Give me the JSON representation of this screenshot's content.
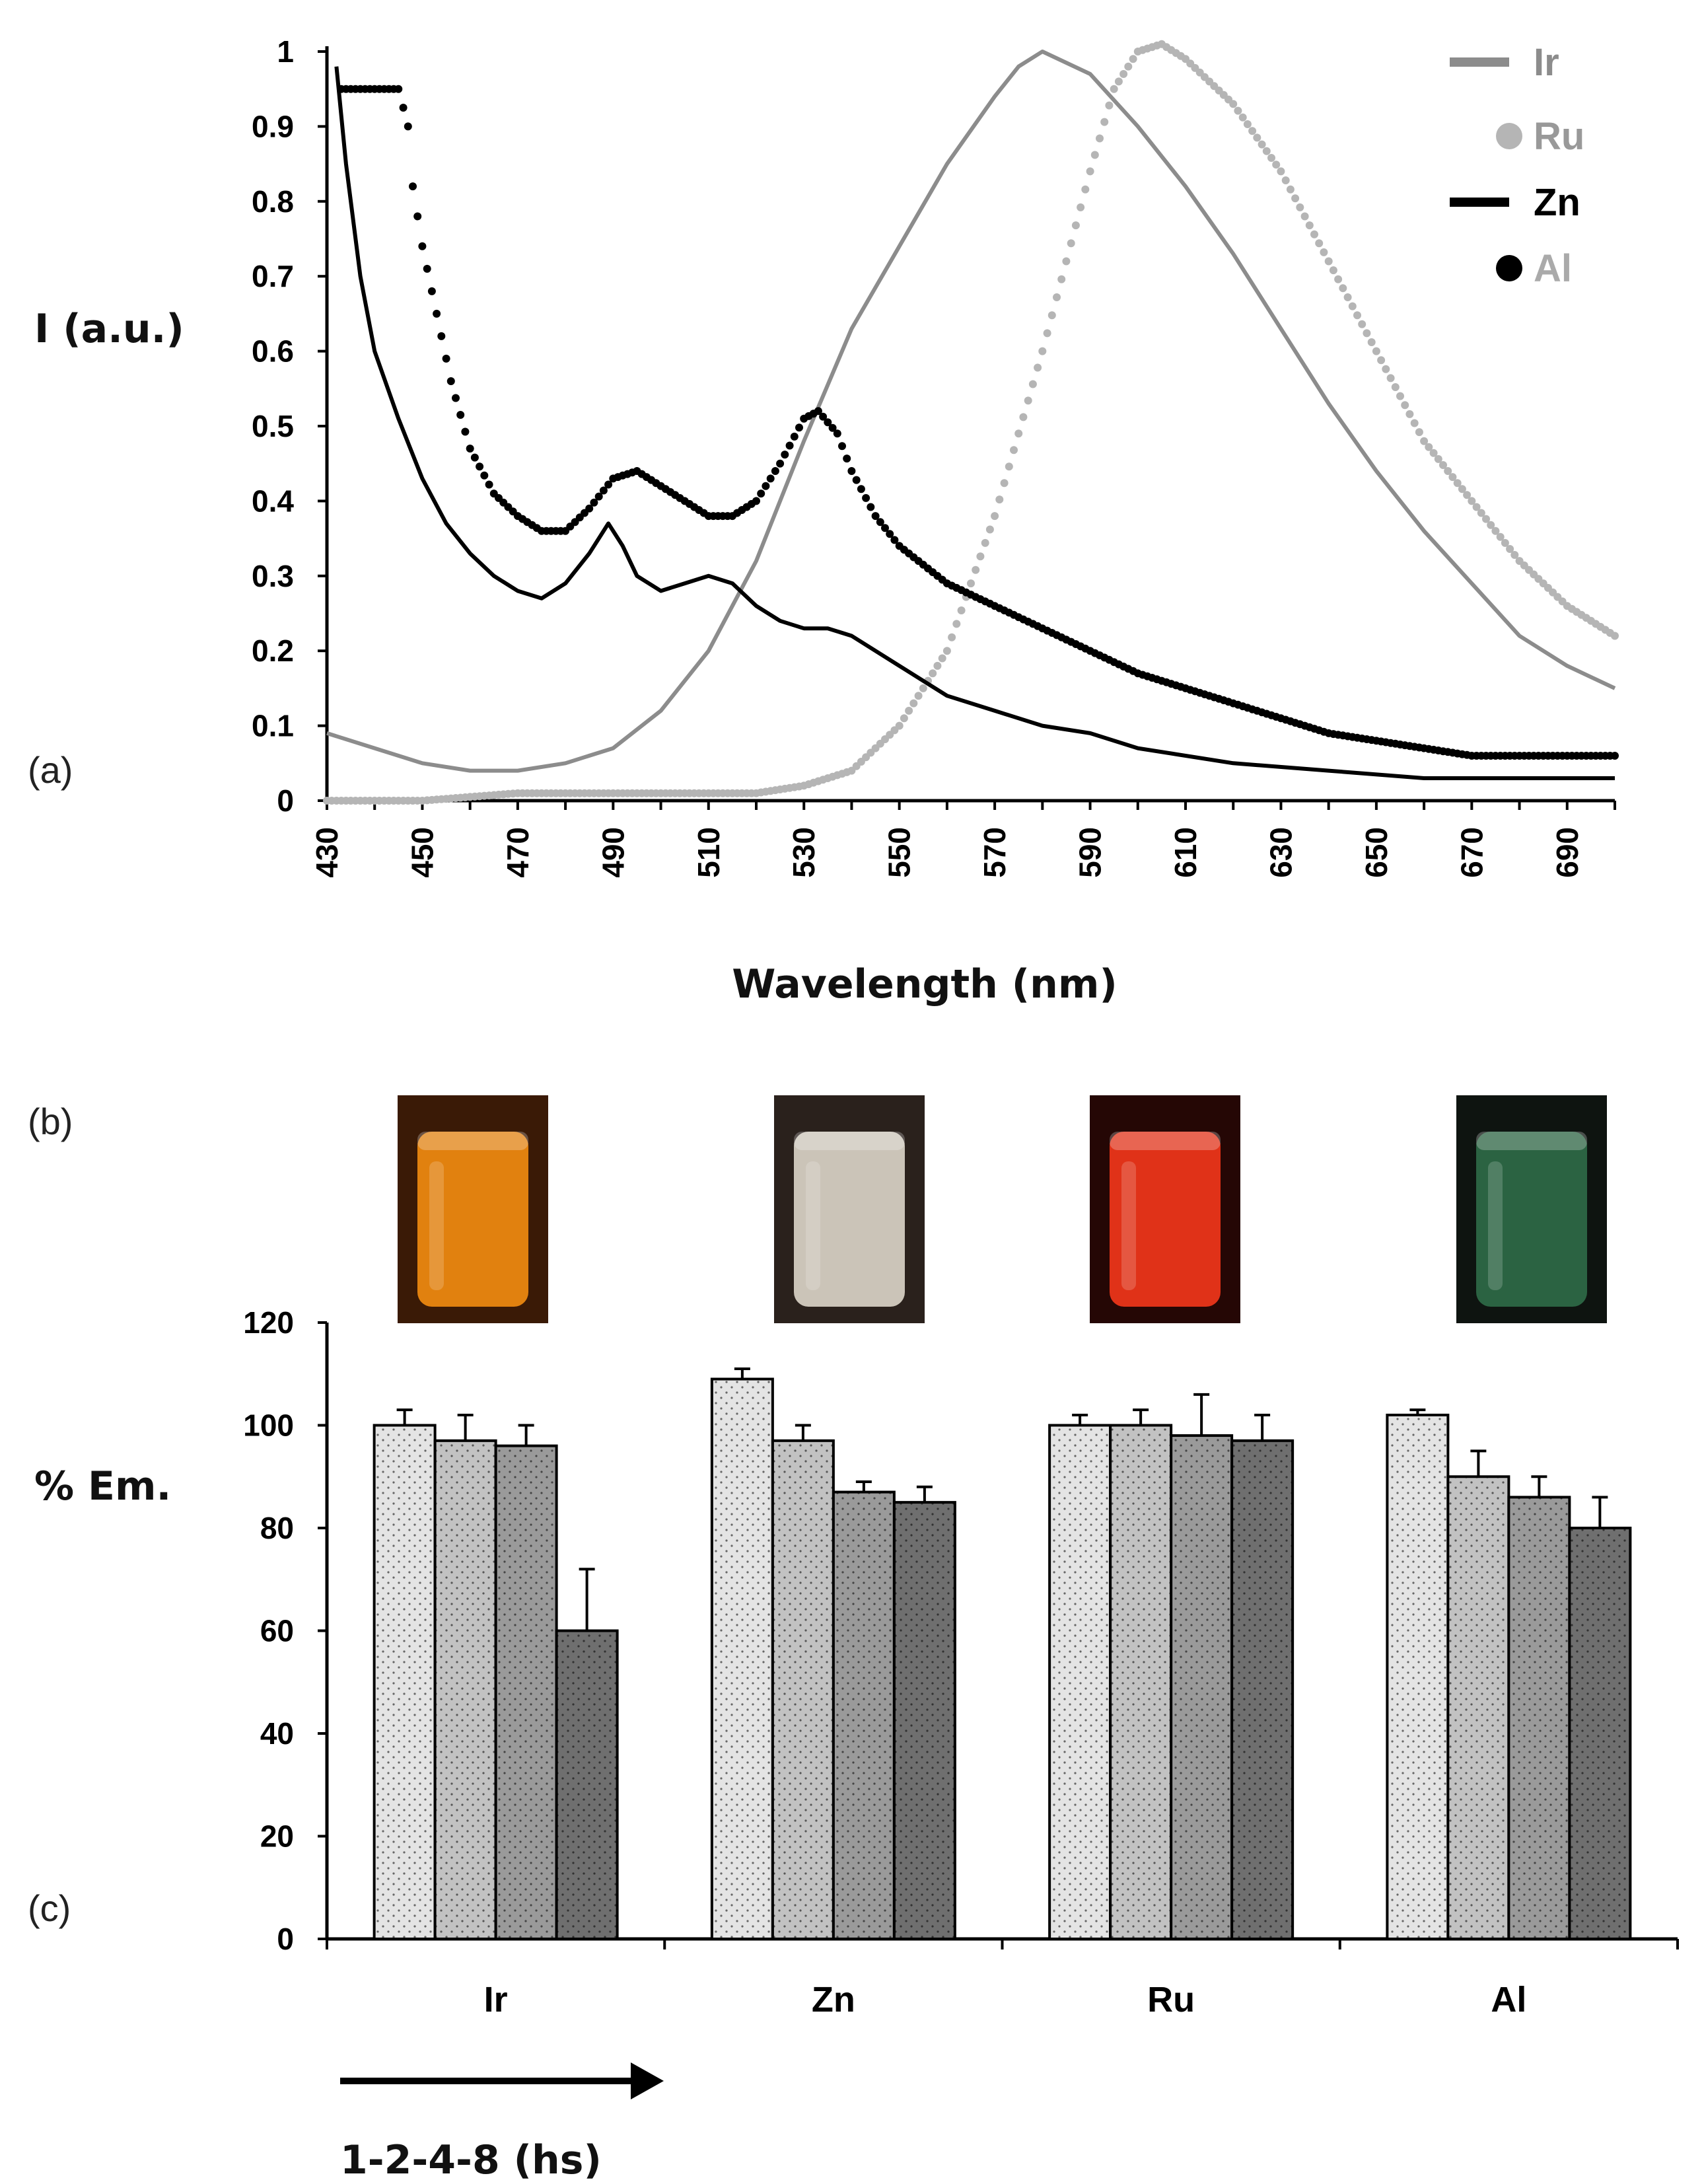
{
  "panel_labels": {
    "a": "(a)",
    "b": "(b)",
    "c": "(c)"
  },
  "colors": {
    "ir": "#8c8c8c",
    "ru": "#b5b5b5",
    "zn": "#000000",
    "al": "#000000",
    "bar1": "#e4e4e4",
    "bar2": "#c2c2c2",
    "bar3": "#9a9a9a",
    "bar4": "#6f6f6f"
  },
  "vials": [
    {
      "name": "Ir",
      "color": "#f08a10",
      "bg": "#3a1a06"
    },
    {
      "name": "Zn",
      "color": "#d9d2c6",
      "bg": "#2a211c"
    },
    {
      "name": "Ru",
      "color": "#f0361a",
      "bg": "#250705"
    },
    {
      "name": "Al",
      "color": "#2e6a46",
      "bg": "#0e1410"
    }
  ],
  "chart_data": [
    {
      "type": "line",
      "title": "",
      "xlabel": "Wavelength (nm)",
      "ylabel": "I (a.u.)",
      "xlim": [
        430,
        700
      ],
      "ylim": [
        0,
        1
      ],
      "x_ticks": [
        "430",
        "450",
        "470",
        "490",
        "510",
        "530",
        "550",
        "570",
        "590",
        "610",
        "630",
        "650",
        "670",
        "690"
      ],
      "y_ticks": [
        "0",
        "0.1",
        "0.2",
        "0.3",
        "0.4",
        "0.5",
        "0.6",
        "0.7",
        "0.8",
        "0.9",
        "1"
      ],
      "legend": [
        "Ir",
        "Ru",
        "Zn",
        "Al"
      ],
      "series": [
        {
          "name": "Ir",
          "style": "line",
          "color": "#8c8c8c",
          "points": [
            [
              430,
              0.09
            ],
            [
              440,
              0.07
            ],
            [
              450,
              0.05
            ],
            [
              460,
              0.04
            ],
            [
              470,
              0.04
            ],
            [
              480,
              0.05
            ],
            [
              490,
              0.07
            ],
            [
              500,
              0.12
            ],
            [
              510,
              0.2
            ],
            [
              520,
              0.32
            ],
            [
              530,
              0.48
            ],
            [
              540,
              0.63
            ],
            [
              550,
              0.74
            ],
            [
              560,
              0.85
            ],
            [
              570,
              0.94
            ],
            [
              575,
              0.98
            ],
            [
              580,
              1.0
            ],
            [
              590,
              0.97
            ],
            [
              600,
              0.9
            ],
            [
              610,
              0.82
            ],
            [
              620,
              0.73
            ],
            [
              630,
              0.63
            ],
            [
              640,
              0.53
            ],
            [
              650,
              0.44
            ],
            [
              660,
              0.36
            ],
            [
              670,
              0.29
            ],
            [
              680,
              0.22
            ],
            [
              690,
              0.18
            ],
            [
              700,
              0.15
            ]
          ]
        },
        {
          "name": "Ru",
          "style": "dotted",
          "color": "#b5b5b5",
          "points": [
            [
              430,
              0.0
            ],
            [
              450,
              0.0
            ],
            [
              470,
              0.01
            ],
            [
              490,
              0.01
            ],
            [
              510,
              0.01
            ],
            [
              520,
              0.01
            ],
            [
              530,
              0.02
            ],
            [
              540,
              0.04
            ],
            [
              550,
              0.1
            ],
            [
              560,
              0.2
            ],
            [
              570,
              0.38
            ],
            [
              580,
              0.6
            ],
            [
              590,
              0.84
            ],
            [
              595,
              0.95
            ],
            [
              600,
              1.0
            ],
            [
              605,
              1.01
            ],
            [
              610,
              0.99
            ],
            [
              620,
              0.93
            ],
            [
              630,
              0.84
            ],
            [
              640,
              0.72
            ],
            [
              650,
              0.6
            ],
            [
              660,
              0.48
            ],
            [
              670,
              0.4
            ],
            [
              680,
              0.32
            ],
            [
              690,
              0.26
            ],
            [
              700,
              0.22
            ]
          ]
        },
        {
          "name": "Zn",
          "style": "line",
          "color": "#000000",
          "points": [
            [
              432,
              0.98
            ],
            [
              434,
              0.85
            ],
            [
              437,
              0.7
            ],
            [
              440,
              0.6
            ],
            [
              445,
              0.51
            ],
            [
              450,
              0.43
            ],
            [
              455,
              0.37
            ],
            [
              460,
              0.33
            ],
            [
              465,
              0.3
            ],
            [
              470,
              0.28
            ],
            [
              475,
              0.27
            ],
            [
              480,
              0.29
            ],
            [
              485,
              0.33
            ],
            [
              489,
              0.37
            ],
            [
              492,
              0.34
            ],
            [
              495,
              0.3
            ],
            [
              500,
              0.28
            ],
            [
              505,
              0.29
            ],
            [
              510,
              0.3
            ],
            [
              515,
              0.29
            ],
            [
              520,
              0.26
            ],
            [
              525,
              0.24
            ],
            [
              530,
              0.23
            ],
            [
              535,
              0.23
            ],
            [
              540,
              0.22
            ],
            [
              550,
              0.18
            ],
            [
              560,
              0.14
            ],
            [
              570,
              0.12
            ],
            [
              580,
              0.1
            ],
            [
              590,
              0.09
            ],
            [
              600,
              0.07
            ],
            [
              620,
              0.05
            ],
            [
              640,
              0.04
            ],
            [
              660,
              0.03
            ],
            [
              680,
              0.03
            ],
            [
              700,
              0.03
            ]
          ]
        },
        {
          "name": "Al",
          "style": "dotted",
          "color": "#000000",
          "points": [
            [
              433,
              0.95
            ],
            [
              437,
              0.95
            ],
            [
              441,
              0.95
            ],
            [
              445,
              0.95
            ],
            [
              447,
              0.9
            ],
            [
              448,
              0.82
            ],
            [
              450,
              0.74
            ],
            [
              453,
              0.65
            ],
            [
              456,
              0.56
            ],
            [
              460,
              0.47
            ],
            [
              465,
              0.41
            ],
            [
              470,
              0.38
            ],
            [
              475,
              0.36
            ],
            [
              480,
              0.36
            ],
            [
              485,
              0.39
            ],
            [
              490,
              0.43
            ],
            [
              495,
              0.44
            ],
            [
              500,
              0.42
            ],
            [
              505,
              0.4
            ],
            [
              510,
              0.38
            ],
            [
              515,
              0.38
            ],
            [
              520,
              0.4
            ],
            [
              525,
              0.45
            ],
            [
              530,
              0.51
            ],
            [
              533,
              0.52
            ],
            [
              537,
              0.49
            ],
            [
              540,
              0.44
            ],
            [
              545,
              0.38
            ],
            [
              550,
              0.34
            ],
            [
              560,
              0.29
            ],
            [
              570,
              0.26
            ],
            [
              580,
              0.23
            ],
            [
              590,
              0.2
            ],
            [
              600,
              0.17
            ],
            [
              610,
              0.15
            ],
            [
              620,
              0.13
            ],
            [
              630,
              0.11
            ],
            [
              640,
              0.09
            ],
            [
              650,
              0.08
            ],
            [
              660,
              0.07
            ],
            [
              670,
              0.06
            ],
            [
              680,
              0.06
            ],
            [
              690,
              0.06
            ],
            [
              700,
              0.06
            ]
          ]
        }
      ]
    },
    {
      "type": "bar",
      "title": "",
      "xlabel": "",
      "ylabel": "% Em.",
      "ylim": [
        0,
        120
      ],
      "y_ticks": [
        "0",
        "20",
        "40",
        "60",
        "80",
        "100",
        "120"
      ],
      "categories": [
        "Ir",
        "Zn",
        "Ru",
        "Al"
      ],
      "series": [
        {
          "name": "1 h",
          "values": [
            100,
            109,
            100,
            102
          ],
          "errors": [
            3,
            2,
            2,
            1
          ]
        },
        {
          "name": "2 h",
          "values": [
            97,
            97,
            100,
            90
          ],
          "errors": [
            5,
            3,
            3,
            5
          ]
        },
        {
          "name": "4 h",
          "values": [
            96,
            87,
            98,
            86
          ],
          "errors": [
            4,
            2,
            8,
            4
          ]
        },
        {
          "name": "8 h",
          "values": [
            60,
            85,
            97,
            80
          ],
          "errors": [
            12,
            3,
            5,
            6
          ]
        }
      ],
      "annotation": "1-2-4-8 (hs)"
    }
  ]
}
